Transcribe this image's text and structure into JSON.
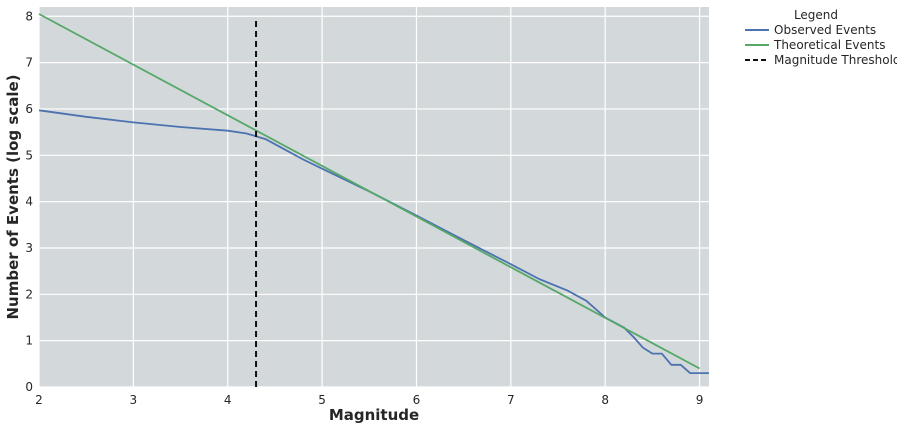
{
  "chart_data": {
    "type": "line",
    "xlabel": "Magnitude",
    "ylabel": "Number of Events (log scale)",
    "xlim": [
      2,
      9.1
    ],
    "ylim": [
      0,
      8.2
    ],
    "x_ticks": [
      2,
      3,
      4,
      5,
      6,
      7,
      8,
      9
    ],
    "y_ticks": [
      0,
      1,
      2,
      3,
      4,
      5,
      6,
      7,
      8
    ],
    "grid": true,
    "legend": {
      "title": "Legend",
      "placement": "outside-top-right"
    },
    "series": [
      {
        "name": "Observed Events",
        "color": "#4c72b0",
        "x": [
          2.0,
          2.5,
          3.0,
          3.5,
          4.0,
          4.2,
          4.4,
          4.6,
          4.8,
          5.0,
          5.5,
          6.0,
          6.5,
          7.0,
          7.3,
          7.6,
          7.8,
          8.0,
          8.2,
          8.3,
          8.4,
          8.5,
          8.6,
          8.7,
          8.8,
          8.9,
          9.0,
          9.1
        ],
        "y": [
          5.97,
          5.83,
          5.71,
          5.61,
          5.53,
          5.47,
          5.35,
          5.13,
          4.91,
          4.71,
          4.22,
          3.7,
          3.17,
          2.65,
          2.33,
          2.08,
          1.86,
          1.5,
          1.28,
          1.08,
          0.85,
          0.72,
          0.72,
          0.48,
          0.48,
          0.3,
          0.3,
          0.3
        ]
      },
      {
        "name": "Theoretical Events",
        "color": "#55a868",
        "x": [
          2.0,
          9.0
        ],
        "y": [
          8.05,
          0.4
        ]
      }
    ],
    "threshold": {
      "name": "Magnitude Threshold",
      "color": "#111111",
      "x": 4.3,
      "y_range": [
        0,
        7.95
      ]
    }
  }
}
